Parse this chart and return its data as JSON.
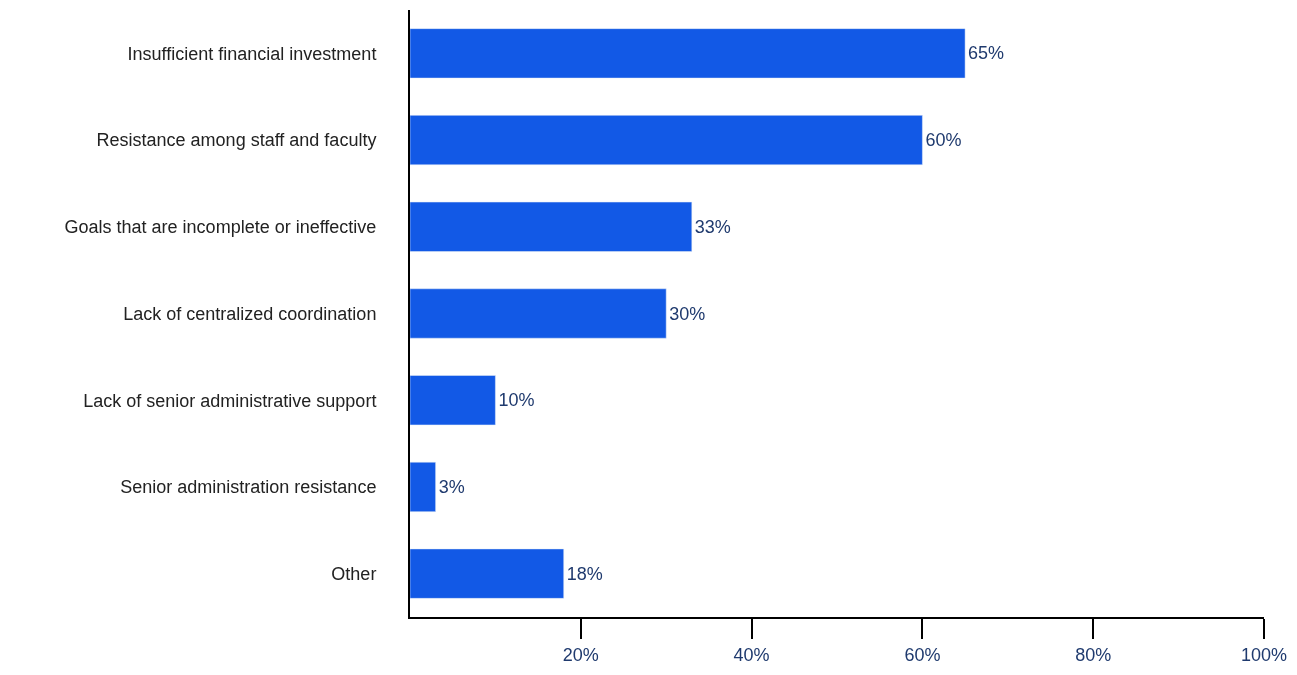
{
  "chart_data": {
    "type": "bar",
    "orientation": "horizontal",
    "categories": [
      "Insufficient financial investment",
      "Resistance among staff and faculty",
      "Goals that are incomplete or ineffective",
      "Lack of centralized coordination",
      "Lack of senior administrative support",
      "Senior administration resistance",
      "Other"
    ],
    "values": [
      65,
      60,
      33,
      30,
      10,
      3,
      18
    ],
    "value_labels": [
      "65%",
      "60%",
      "33%",
      "30%",
      "10%",
      "3%",
      "18%"
    ],
    "color": "#1259e6",
    "xlim": [
      0,
      100
    ],
    "xticks": [
      {
        "value": 20,
        "label": "20%"
      },
      {
        "value": 40,
        "label": "40%"
      },
      {
        "value": 60,
        "label": "60%"
      },
      {
        "value": 80,
        "label": "80%"
      },
      {
        "value": 100,
        "label": "100%"
      }
    ],
    "legend": false
  }
}
